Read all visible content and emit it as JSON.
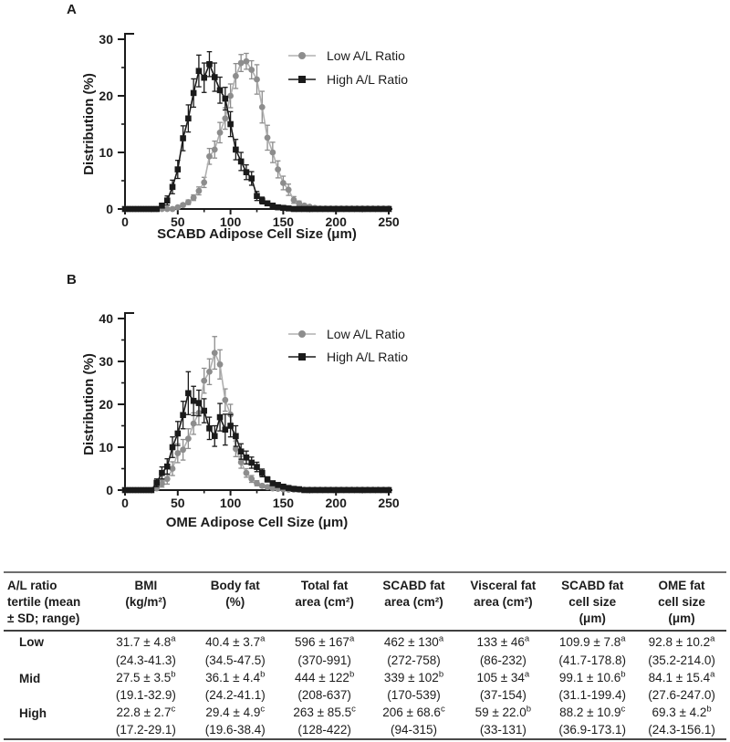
{
  "figure": {
    "panel_a_label": "A",
    "panel_b_label": "B"
  },
  "chart_data": [
    {
      "id": "panel-a",
      "type": "line",
      "title": "",
      "xlabel": "SCABD Adipose Cell Size (μm)",
      "ylabel": "Distribution (%)",
      "xlim": [
        0,
        250
      ],
      "ylim": [
        0,
        30
      ],
      "xticks": [
        0,
        50,
        100,
        150,
        200,
        250
      ],
      "xminorticks": [
        25,
        75,
        125,
        175,
        225
      ],
      "yticks": [
        0,
        10,
        20,
        30
      ],
      "yminorstep": 5,
      "grid": false,
      "legend_position": "top-right",
      "x": [
        0,
        5,
        10,
        15,
        20,
        25,
        30,
        35,
        40,
        45,
        50,
        55,
        60,
        65,
        70,
        75,
        80,
        85,
        90,
        95,
        100,
        105,
        110,
        115,
        120,
        125,
        130,
        135,
        140,
        145,
        150,
        155,
        160,
        165,
        170,
        175,
        180,
        185,
        190,
        195,
        200,
        205,
        210,
        215,
        220,
        225,
        230,
        235,
        240,
        245,
        250
      ],
      "series": [
        {
          "name": "Low A/L Ratio",
          "marker": "circle",
          "color": "#8d8d8d",
          "line_color": "#b0b0b0",
          "values": [
            0,
            0,
            0,
            0,
            0,
            0,
            0,
            0,
            0,
            0,
            0.3,
            0.7,
            1.2,
            2,
            3.2,
            4.7,
            9.3,
            10.5,
            13.5,
            16,
            20,
            23.5,
            25.8,
            26.1,
            24.6,
            22.9,
            18,
            12.6,
            10,
            7,
            4.6,
            3.4,
            1.6,
            1,
            0.6,
            0.4,
            0.2,
            0.1,
            0.1,
            0.1,
            0.1,
            0.1,
            0.1,
            0.1,
            0.1,
            0.1,
            0.1,
            0.1,
            0.1,
            0.1,
            0.1
          ],
          "err": [
            0,
            0,
            0,
            0,
            0,
            0,
            0,
            0,
            0,
            0,
            0.2,
            0.3,
            0.4,
            0.5,
            0.7,
            0.9,
            1.4,
            1.5,
            1.8,
            1.9,
            2.1,
            2.2,
            1.5,
            1.4,
            1.6,
            2.6,
            2.8,
            2.2,
            1.8,
            1.5,
            1.2,
            1,
            0.6,
            0.4,
            0.3,
            0.2,
            0.1,
            0,
            0,
            0,
            0,
            0,
            0,
            0,
            0,
            0,
            0,
            0,
            0,
            0,
            0
          ]
        },
        {
          "name": "High A/L Ratio",
          "marker": "square",
          "color": "#1a1a1a",
          "line_color": "#1a1a1a",
          "values": [
            0,
            0,
            0,
            0,
            0,
            0,
            0,
            0.6,
            1.5,
            3.9,
            7,
            12.5,
            16,
            20.5,
            24.4,
            23.2,
            25.6,
            23.3,
            21,
            19.5,
            15,
            10.5,
            8.4,
            6.5,
            5.4,
            2.3,
            1.5,
            1,
            0.6,
            0.3,
            0.2,
            0.1,
            0,
            0,
            0,
            0,
            0,
            0,
            0,
            0,
            0,
            0,
            0,
            0,
            0,
            0,
            0,
            0,
            0,
            0,
            0
          ],
          "err": [
            0,
            0,
            0,
            0,
            0,
            0,
            0,
            0.4,
            0.8,
            1.2,
            1.6,
            2.2,
            2.4,
            2.5,
            2.8,
            2.6,
            2.2,
            2.5,
            2.3,
            2,
            2.2,
            1.8,
            1.6,
            1.3,
            1.2,
            0.8,
            0.6,
            0.4,
            0.3,
            0.2,
            0.1,
            0.1,
            0,
            0,
            0,
            0,
            0,
            0,
            0,
            0,
            0,
            0,
            0,
            0,
            0,
            0,
            0,
            0,
            0,
            0,
            0
          ]
        }
      ]
    },
    {
      "id": "panel-b",
      "type": "line",
      "title": "",
      "xlabel": "OME Adipose Cell Size (μm)",
      "ylabel": "Distribution (%)",
      "xlim": [
        0,
        250
      ],
      "ylim": [
        0,
        40
      ],
      "xticks": [
        0,
        50,
        100,
        150,
        200,
        250
      ],
      "xminorticks": [
        25,
        75,
        125,
        175,
        225
      ],
      "yticks": [
        0,
        10,
        20,
        30,
        40
      ],
      "yminorstep": 5,
      "grid": false,
      "legend_position": "top-right",
      "x": [
        0,
        5,
        10,
        15,
        20,
        25,
        30,
        35,
        40,
        45,
        50,
        55,
        60,
        65,
        70,
        75,
        80,
        85,
        90,
        95,
        100,
        105,
        110,
        115,
        120,
        125,
        130,
        135,
        140,
        145,
        150,
        155,
        160,
        165,
        170,
        175,
        180,
        185,
        190,
        195,
        200,
        205,
        210,
        215,
        220,
        225,
        230,
        235,
        240,
        245,
        250
      ],
      "series": [
        {
          "name": "Low A/L Ratio",
          "marker": "circle",
          "color": "#8d8d8d",
          "line_color": "#b0b0b0",
          "values": [
            0,
            0,
            0,
            0,
            0,
            0,
            0.4,
            1.5,
            2.6,
            5,
            8.6,
            9.4,
            12,
            15.5,
            18,
            25.5,
            27.6,
            32,
            29.3,
            21,
            17.6,
            9.6,
            6.5,
            4,
            2.6,
            1.6,
            1,
            0.7,
            0.4,
            0.3,
            0.2,
            0.1,
            0.1,
            0.1,
            0.1,
            0.1,
            0.1,
            0.1,
            0.1,
            0.1,
            0.1,
            0.1,
            0.1,
            0.1,
            0.1,
            0.1,
            0.1,
            0.1,
            0.1,
            0.1,
            0.1
          ],
          "err": [
            0,
            0,
            0,
            0,
            0,
            0,
            0.3,
            0.8,
            1.2,
            1.6,
            2.2,
            2.4,
            2.3,
            2.5,
            2.8,
            2.9,
            3,
            3.8,
            3.4,
            2.6,
            2.4,
            1.8,
            1.4,
            1,
            0.8,
            0.6,
            0.4,
            0.3,
            0.2,
            0.2,
            0.1,
            0,
            0,
            0,
            0,
            0,
            0,
            0,
            0,
            0,
            0,
            0,
            0,
            0,
            0,
            0,
            0,
            0,
            0,
            0,
            0
          ]
        },
        {
          "name": "High A/L Ratio",
          "marker": "square",
          "color": "#1a1a1a",
          "line_color": "#1a1a1a",
          "values": [
            0,
            0,
            0,
            0,
            0,
            0,
            1.7,
            4,
            5.5,
            10,
            13.2,
            17.5,
            22.6,
            20.8,
            20.3,
            18.5,
            14.4,
            12.6,
            17,
            14.1,
            15,
            12.6,
            9,
            7.6,
            6.4,
            5.4,
            4,
            2.5,
            1.6,
            1.2,
            0.8,
            0.5,
            0.3,
            0.2,
            0,
            0,
            0,
            0,
            0,
            0,
            0,
            0,
            0,
            0,
            0,
            0,
            0,
            0,
            0,
            0,
            0
          ],
          "err": [
            0,
            0,
            0,
            0,
            0,
            0,
            0.9,
            1.4,
            1.8,
            2.4,
            2.8,
            3.2,
            5,
            3.4,
            3,
            2.8,
            2.6,
            2.4,
            3.2,
            3.6,
            2.6,
            2.4,
            1.8,
            1.5,
            1.3,
            1.1,
            0.9,
            0.6,
            0.4,
            0.3,
            0.2,
            0.2,
            0.1,
            0.1,
            0,
            0,
            0,
            0,
            0,
            0,
            0,
            0,
            0,
            0,
            0,
            0,
            0,
            0,
            0,
            0,
            0
          ]
        }
      ]
    }
  ],
  "table": {
    "headers": [
      "A/L ratio\ntertile (mean\n± SD; range)",
      "BMI\n(kg/m²)",
      "Body fat\n(%)",
      "Total fat\narea (cm²)",
      "SCABD fat\narea (cm²)",
      "Visceral fat\narea (cm²)",
      "SCABD fat\ncell size\n(μm)",
      "OME fat\ncell size\n(μm)"
    ],
    "rows": [
      {
        "tertile": "Low",
        "cells": [
          {
            "mean": "31.7 ± 4.8",
            "sup": "a",
            "range": "(24.3-41.3)"
          },
          {
            "mean": "40.4 ± 3.7",
            "sup": "a",
            "range": "(34.5-47.5)"
          },
          {
            "mean": "596 ± 167",
            "sup": "a",
            "range": "(370-991)"
          },
          {
            "mean": "462 ± 130",
            "sup": "a",
            "range": "(272-758)"
          },
          {
            "mean": "133 ± 46",
            "sup": "a",
            "range": "(86-232)"
          },
          {
            "mean": "109.9 ± 7.8",
            "sup": "a",
            "range": "(41.7-178.8)"
          },
          {
            "mean": "92.8 ± 10.2",
            "sup": "a",
            "range": "(35.2-214.0)"
          }
        ]
      },
      {
        "tertile": "Mid",
        "cells": [
          {
            "mean": "27.5 ± 3.5",
            "sup": "b",
            "range": "(19.1-32.9)"
          },
          {
            "mean": "36.1 ± 4.4",
            "sup": "b",
            "range": "(24.2-41.1)"
          },
          {
            "mean": "444 ± 122",
            "sup": "b",
            "range": "(208-637)"
          },
          {
            "mean": "339 ± 102",
            "sup": "b",
            "range": "(170-539)"
          },
          {
            "mean": "105 ± 34",
            "sup": "a",
            "range": "(37-154)"
          },
          {
            "mean": "99.1 ± 10.6",
            "sup": "b",
            "range": "(31.1-199.4)"
          },
          {
            "mean": "84.1 ± 15.4",
            "sup": "a",
            "range": "(27.6-247.0)"
          }
        ]
      },
      {
        "tertile": "High",
        "cells": [
          {
            "mean": "22.8 ± 2.7",
            "sup": "c",
            "range": "(17.2-29.1)"
          },
          {
            "mean": "29.4 ± 4.9",
            "sup": "c",
            "range": "(19.6-38.4)"
          },
          {
            "mean": "263 ± 85.5",
            "sup": "c",
            "range": "(128-422)"
          },
          {
            "mean": "206 ± 68.6",
            "sup": "c",
            "range": "(94-315)"
          },
          {
            "mean": "59 ± 22.0",
            "sup": "b",
            "range": "(33-131)"
          },
          {
            "mean": "88.2 ± 10.9",
            "sup": "c",
            "range": "(36.9-173.1)"
          },
          {
            "mean": "69.3 ± 4.2",
            "sup": "b",
            "range": "(24.3-156.1)"
          }
        ]
      }
    ]
  }
}
